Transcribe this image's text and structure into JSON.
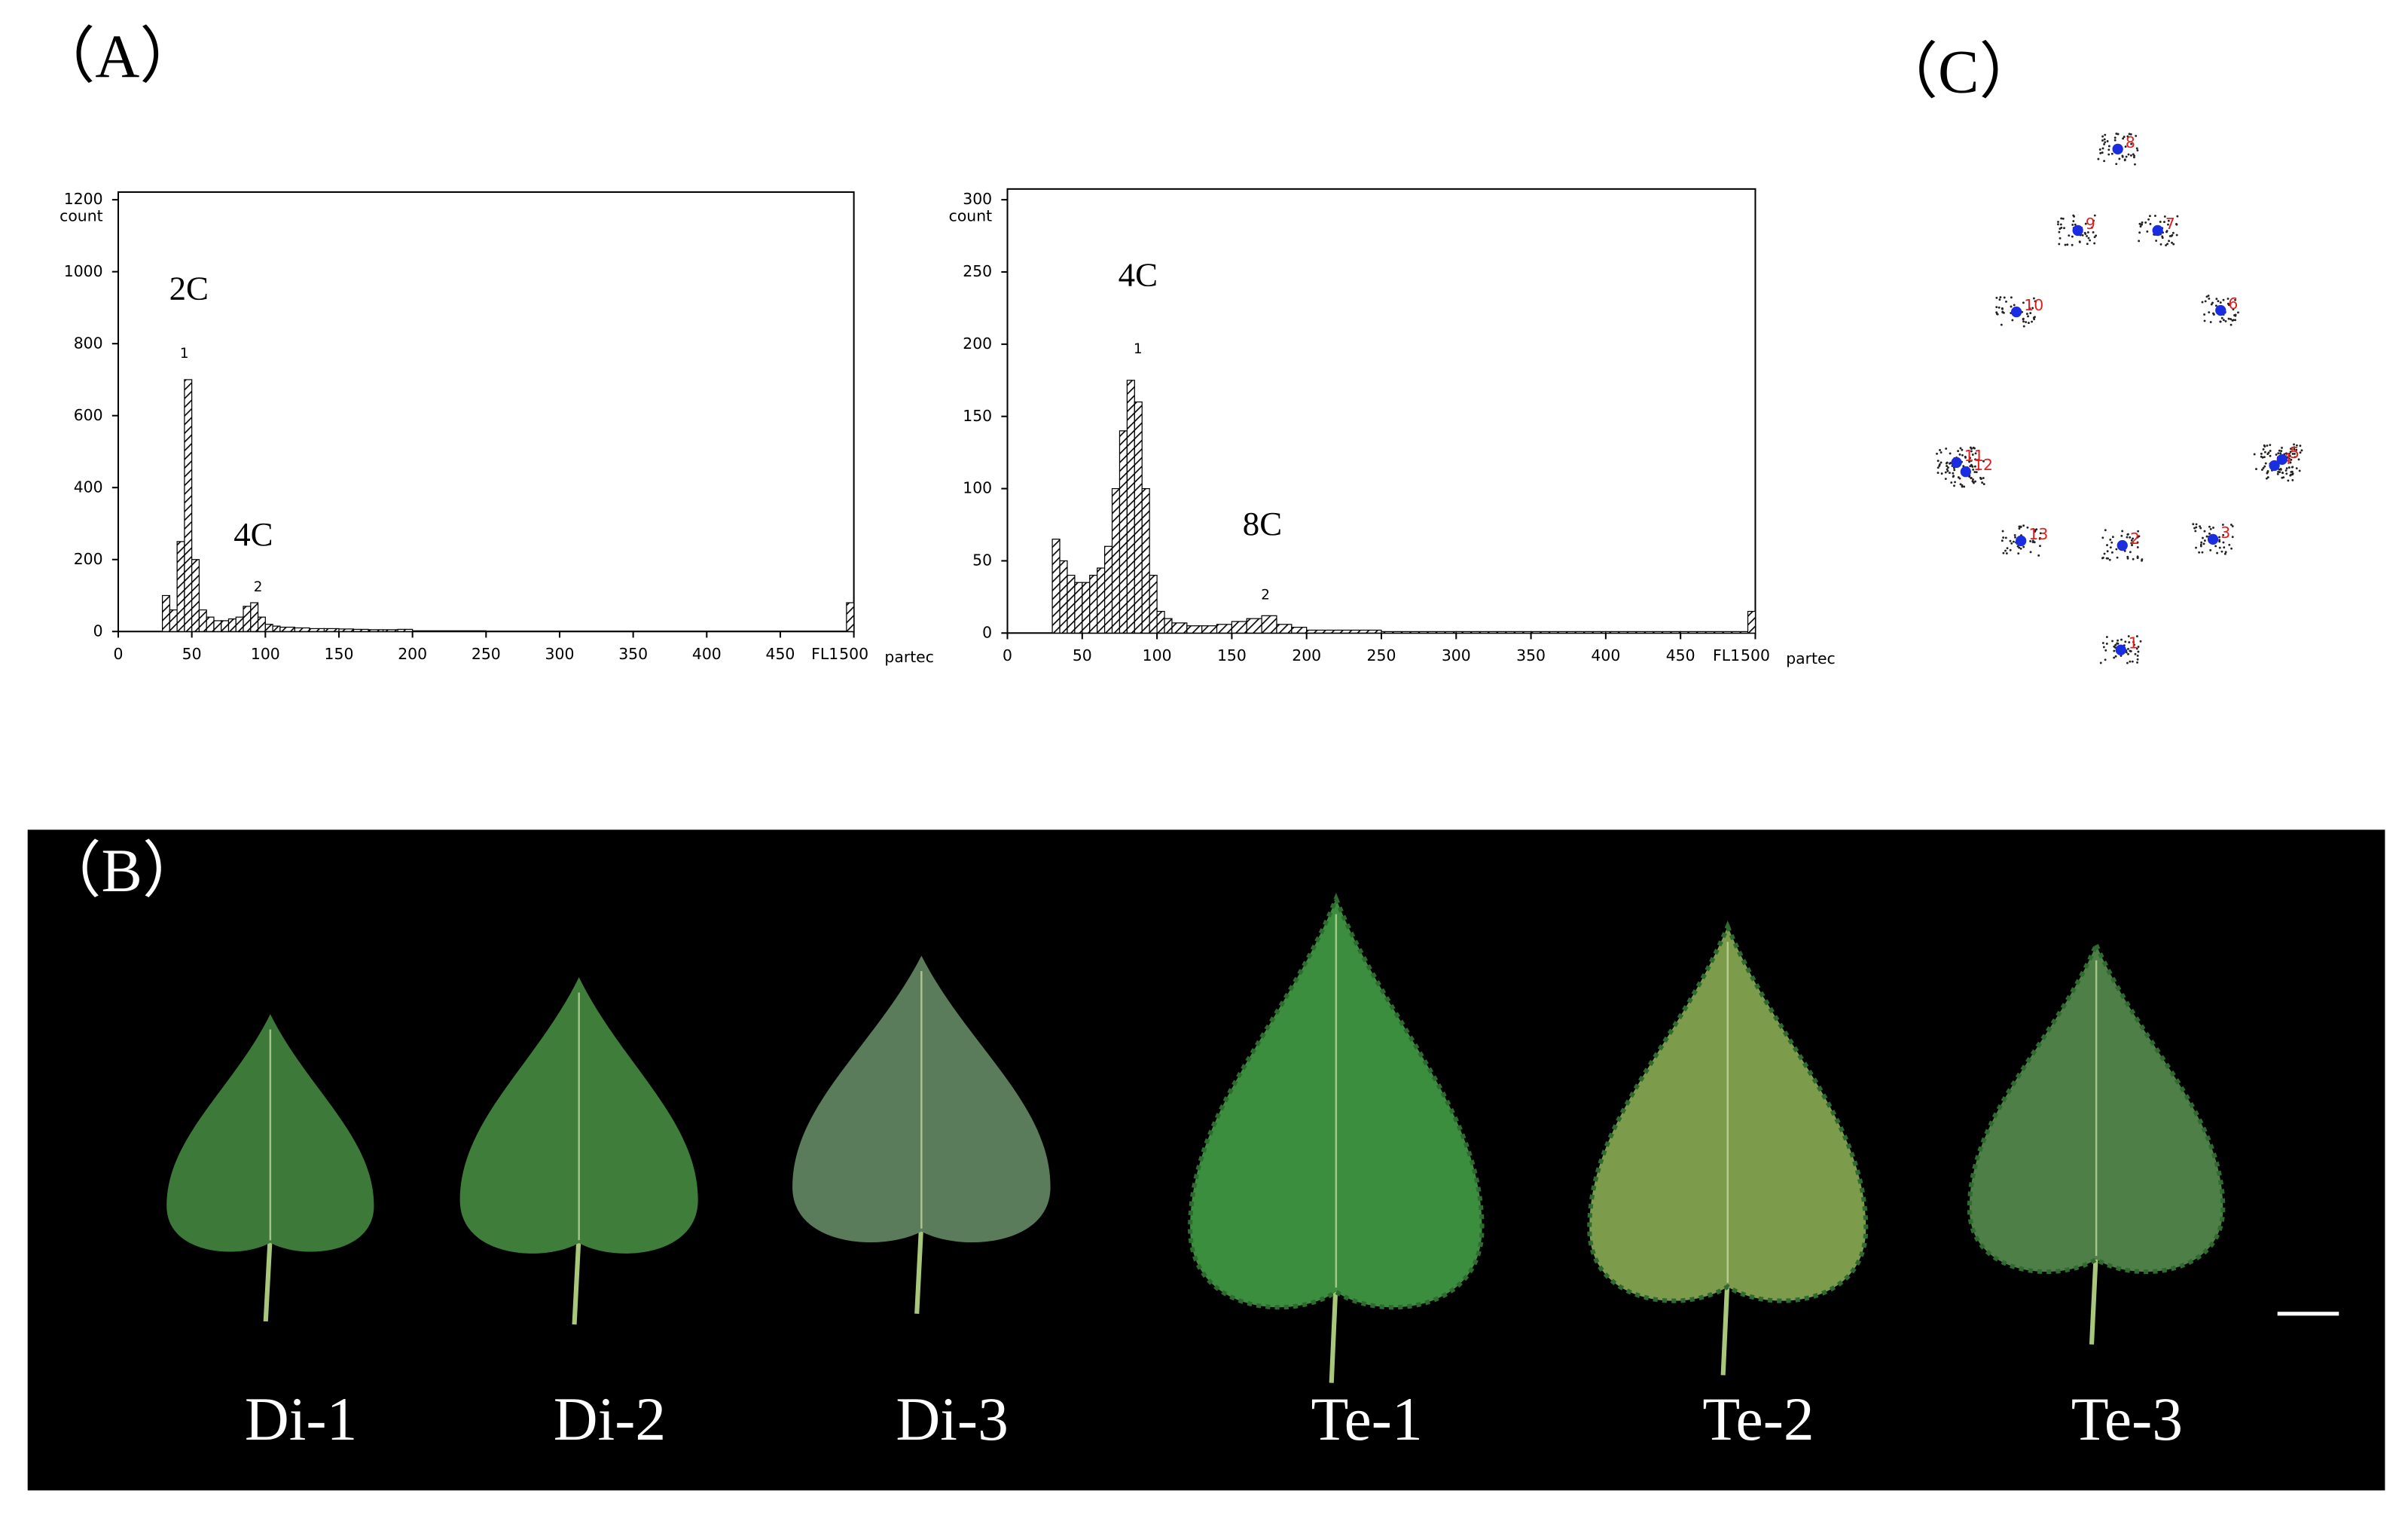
{
  "panel_labels": [
    "（A）",
    "（B）",
    "（C）"
  ],
  "chart_data": [
    {
      "type": "histogram",
      "y_label": "count",
      "x_label": "FL1",
      "corner_label": "partec",
      "annotations": [
        "2C",
        "4C"
      ],
      "peak_labels": [
        "1",
        "2"
      ],
      "bins": [
        30,
        35,
        40,
        45,
        50,
        55,
        60,
        65,
        70,
        75,
        80,
        85,
        90,
        95,
        100,
        105,
        110,
        120,
        130,
        140,
        150,
        160,
        170,
        180,
        190,
        200,
        250,
        300,
        350,
        400,
        450,
        495,
        500
      ],
      "counts": [
        100,
        60,
        250,
        700,
        200,
        60,
        40,
        30,
        30,
        35,
        40,
        70,
        80,
        40,
        20,
        15,
        12,
        10,
        8,
        8,
        7,
        6,
        5,
        5,
        6,
        2,
        1,
        1,
        1,
        1,
        1,
        80
      ],
      "xlim": [
        0,
        500
      ],
      "ylim": [
        0,
        1200
      ],
      "xticks": [
        0,
        50,
        100,
        150,
        200,
        250,
        300,
        350,
        400,
        450,
        500
      ],
      "yticks": [
        0,
        200,
        400,
        600,
        800,
        1000,
        1200
      ]
    },
    {
      "type": "histogram",
      "y_label": "count",
      "x_label": "FL1",
      "corner_label": "partec",
      "annotations": [
        "4C",
        "8C"
      ],
      "peak_labels": [
        "1",
        "2"
      ],
      "bins": [
        30,
        35,
        40,
        45,
        50,
        55,
        60,
        65,
        70,
        75,
        80,
        85,
        90,
        95,
        100,
        105,
        110,
        120,
        130,
        140,
        150,
        160,
        170,
        180,
        190,
        200,
        250,
        300,
        350,
        400,
        450,
        495,
        500
      ],
      "counts": [
        65,
        50,
        40,
        35,
        35,
        40,
        45,
        60,
        100,
        140,
        175,
        160,
        100,
        40,
        15,
        10,
        7,
        5,
        5,
        6,
        8,
        10,
        12,
        6,
        4,
        2,
        1,
        1,
        1,
        1,
        1,
        15
      ],
      "xlim": [
        0,
        500
      ],
      "ylim": [
        0,
        300
      ],
      "xticks": [
        0,
        50,
        100,
        150,
        200,
        250,
        300,
        350,
        400,
        450,
        500
      ],
      "yticks": [
        0,
        50,
        100,
        150,
        200,
        250,
        300
      ]
    }
  ],
  "leaves": {
    "labels": [
      "Di-1",
      "Di-2",
      "Di-3",
      "Te-1",
      "Te-2",
      "Te-3"
    ]
  },
  "landmarks": {
    "labels": [
      "1",
      "2",
      "3",
      "4",
      "5",
      "6",
      "7",
      "8",
      "9",
      "10",
      "11",
      "12",
      "13"
    ]
  }
}
